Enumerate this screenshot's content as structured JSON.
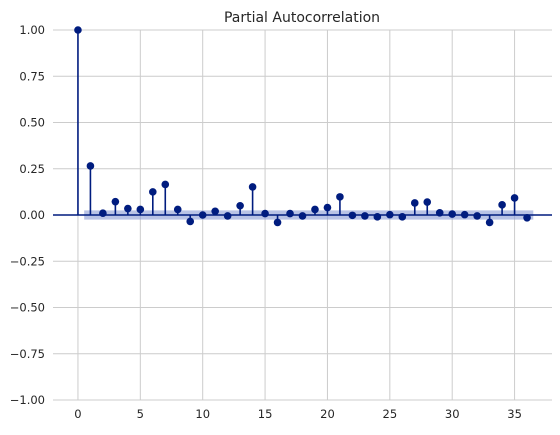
{
  "chart_data": {
    "type": "stem",
    "title": "Partial Autocorrelation",
    "xlabel": "",
    "ylabel": "",
    "xlim": [
      -2,
      38
    ],
    "ylim": [
      -1.0,
      1.0
    ],
    "x_ticks": [
      0,
      5,
      10,
      15,
      20,
      25,
      30,
      35
    ],
    "x_tick_labels": [
      "0",
      "5",
      "10",
      "15",
      "20",
      "25",
      "30",
      "35"
    ],
    "y_ticks": [
      1.0,
      0.75,
      0.5,
      0.25,
      0.0,
      -0.25,
      -0.5,
      -0.75,
      -1.0
    ],
    "y_tick_labels": [
      "1.00",
      "0.75",
      "0.50",
      "0.25",
      "0.00",
      "−0.25",
      "−0.50",
      "−0.75",
      "−1.00"
    ],
    "grid": true,
    "lags": [
      0,
      1,
      2,
      3,
      4,
      5,
      6,
      7,
      8,
      9,
      10,
      11,
      12,
      13,
      14,
      15,
      16,
      17,
      18,
      19,
      20,
      21,
      22,
      23,
      24,
      25,
      26,
      27,
      28,
      29,
      30,
      31,
      32,
      33,
      34,
      35,
      36
    ],
    "values": [
      1.0,
      0.265,
      0.01,
      0.072,
      0.035,
      0.03,
      0.125,
      0.165,
      0.03,
      -0.035,
      0.0,
      0.02,
      -0.005,
      0.05,
      0.152,
      0.008,
      -0.04,
      0.008,
      -0.005,
      0.03,
      0.04,
      0.098,
      -0.002,
      -0.005,
      -0.01,
      0.002,
      -0.01,
      0.065,
      0.07,
      0.012,
      0.005,
      0.002,
      -0.005,
      -0.04,
      0.055,
      0.092,
      -0.015
    ],
    "confidence_band": [
      -0.025,
      0.025
    ],
    "colors": {
      "stem": "#001c7f",
      "marker": "#001c7f",
      "zero_line": "#001c7f",
      "band": "#8a9bd3",
      "grid": "#cccccc"
    }
  }
}
